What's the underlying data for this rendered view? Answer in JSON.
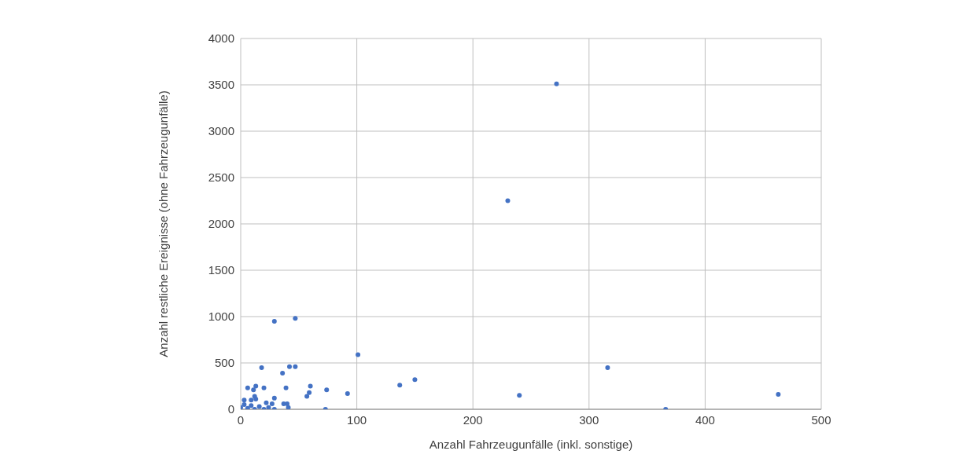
{
  "chart_data": {
    "type": "scatter",
    "xlabel": "Anzahl Fahrzeugunfälle (inkl. sonstige)",
    "ylabel": "Anzahl restliche Ereignisse (ohne Fahrzeugunfälle)",
    "x": [
      272,
      230,
      29,
      47,
      101,
      18,
      42,
      47,
      36,
      6,
      13,
      11,
      20,
      39,
      60,
      59,
      57,
      74,
      92,
      3,
      9,
      12,
      13,
      29,
      22,
      27,
      37,
      40,
      41,
      73,
      29,
      20,
      24,
      137,
      150,
      240,
      316,
      366,
      463,
      0,
      3,
      6,
      9,
      12,
      16
    ],
    "values": [
      3510,
      2250,
      950,
      980,
      590,
      450,
      460,
      460,
      390,
      230,
      250,
      210,
      230,
      230,
      250,
      180,
      140,
      210,
      170,
      100,
      100,
      140,
      110,
      120,
      70,
      60,
      60,
      60,
      20,
      0,
      0,
      0,
      20,
      260,
      320,
      150,
      450,
      0,
      160,
      20,
      50,
      10,
      40,
      0,
      30
    ],
    "color": "#4472c4",
    "marker": "circle",
    "grid": true,
    "xlim": [
      0,
      500
    ],
    "xticks": [
      0,
      100,
      200,
      300,
      400,
      500
    ],
    "ylim": [
      0,
      4000
    ],
    "yticks": [
      0,
      500,
      1000,
      1500,
      2000,
      2500,
      3000,
      3500,
      4000
    ]
  }
}
